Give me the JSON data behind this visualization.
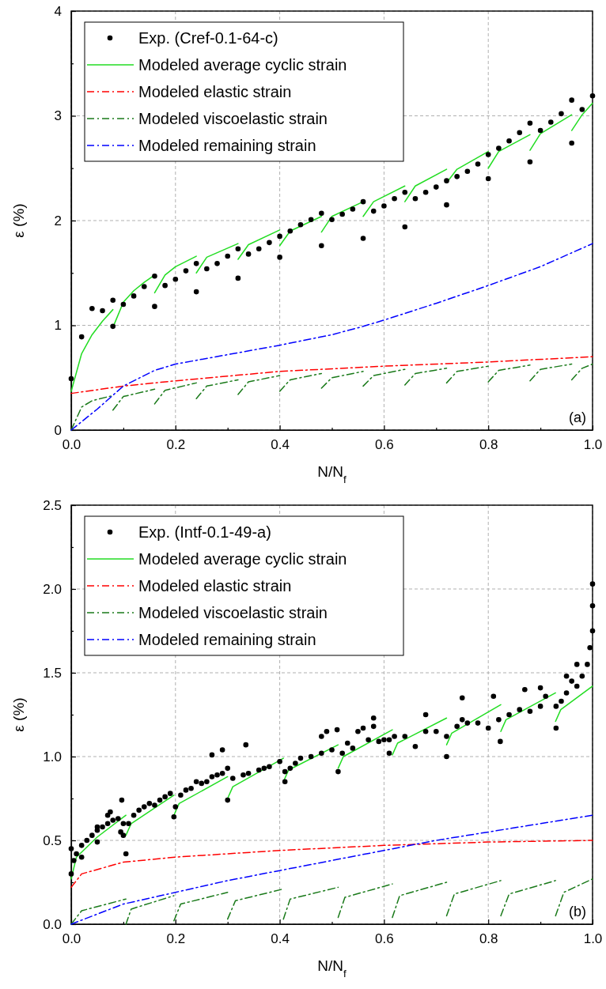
{
  "chart_data": [
    {
      "type": "line",
      "xlabel": "N/N$_{f}$",
      "ylabel": "ε (%)",
      "xlim": [
        0,
        1
      ],
      "ylim": [
        0,
        4
      ],
      "xticks": [
        {
          "value": 0,
          "label": "0.0"
        },
        {
          "value": 0.1,
          "label": null
        },
        {
          "value": 0.2,
          "label": "0.2"
        },
        {
          "value": 0.3,
          "label": null
        },
        {
          "value": 0.4,
          "label": "0.4"
        },
        {
          "value": 0.5,
          "label": null
        },
        {
          "value": 0.6,
          "label": "0.6"
        },
        {
          "value": 0.7,
          "label": null
        },
        {
          "value": 0.8,
          "label": "0.8"
        },
        {
          "value": 0.9,
          "label": null
        },
        {
          "value": 1,
          "label": "1.0"
        }
      ],
      "yticks": [
        0,
        {
          "value": 0.5,
          "label": null
        },
        1,
        {
          "value": 1.5,
          "label": null
        },
        2,
        {
          "value": 2.5,
          "label": null
        },
        3,
        {
          "value": 3.5,
          "label": null
        },
        4
      ],
      "grid": true,
      "legend": "top left",
      "annotations": [
        "(a)"
      ],
      "series": [
        {
          "name": "Exp. (Cref-0.1-64-c)",
          "type": "scatter",
          "marker": "circle",
          "color": "#000000",
          "x": [
            0,
            0.02,
            0.04,
            0.06,
            0.08,
            0.08,
            0.1,
            0.12,
            0.14,
            0.16,
            0.16,
            0.18,
            0.2,
            0.22,
            0.24,
            0.24,
            0.26,
            0.28,
            0.3,
            0.32,
            0.32,
            0.34,
            0.36,
            0.38,
            0.4,
            0.4,
            0.42,
            0.44,
            0.46,
            0.48,
            0.48,
            0.5,
            0.52,
            0.54,
            0.56,
            0.56,
            0.58,
            0.6,
            0.62,
            0.64,
            0.64,
            0.66,
            0.68,
            0.7,
            0.72,
            0.72,
            0.74,
            0.76,
            0.78,
            0.8,
            0.8,
            0.82,
            0.84,
            0.86,
            0.88,
            0.88,
            0.9,
            0.92,
            0.94,
            0.96,
            0.96,
            0.98,
            1.0
          ],
          "values": [
            0.49,
            0.89,
            1.16,
            1.14,
            1.24,
            0.99,
            1.2,
            1.28,
            1.37,
            1.47,
            1.18,
            1.38,
            1.44,
            1.52,
            1.59,
            1.32,
            1.54,
            1.59,
            1.66,
            1.73,
            1.45,
            1.68,
            1.73,
            1.79,
            1.85,
            1.65,
            1.9,
            1.96,
            2.01,
            2.07,
            1.76,
            2.01,
            2.06,
            2.11,
            2.18,
            1.83,
            2.09,
            2.14,
            2.21,
            2.27,
            1.94,
            2.21,
            2.27,
            2.32,
            2.38,
            2.15,
            2.42,
            2.47,
            2.54,
            2.63,
            2.4,
            2.69,
            2.76,
            2.84,
            2.93,
            2.56,
            2.86,
            2.94,
            3.02,
            3.15,
            2.74,
            3.06,
            3.19
          ]
        },
        {
          "name": "Modeled average cyclic strain",
          "line_style": "solid",
          "color": "#22dd22",
          "x": [
            0,
            0.02,
            0.04,
            0.06,
            0.08
          ],
          "values": [
            0.37,
            0.73,
            0.91,
            1.04,
            1.15
          ]
        },
        {
          "line_style": "solid",
          "color": "#22dd22",
          "x": [
            0.08,
            0.1,
            0.12,
            0.14,
            0.16
          ],
          "values": [
            0.98,
            1.22,
            1.33,
            1.41,
            1.48
          ]
        },
        {
          "line_style": "solid",
          "color": "#22dd22",
          "x": [
            0.16,
            0.18,
            0.2,
            0.24
          ],
          "values": [
            1.31,
            1.48,
            1.56,
            1.66
          ]
        },
        {
          "line_style": "solid",
          "color": "#22dd22",
          "x": [
            0.24,
            0.26,
            0.32
          ],
          "values": [
            1.5,
            1.65,
            1.78
          ]
        },
        {
          "line_style": "solid",
          "color": "#22dd22",
          "x": [
            0.32,
            0.34,
            0.4
          ],
          "values": [
            1.63,
            1.77,
            1.91
          ]
        },
        {
          "line_style": "solid",
          "color": "#22dd22",
          "x": [
            0.4,
            0.42,
            0.48
          ],
          "values": [
            1.76,
            1.9,
            2.04
          ]
        },
        {
          "line_style": "solid",
          "color": "#22dd22",
          "x": [
            0.48,
            0.5,
            0.56
          ],
          "values": [
            1.89,
            2.04,
            2.18
          ]
        },
        {
          "line_style": "solid",
          "color": "#22dd22",
          "x": [
            0.56,
            0.58,
            0.64
          ],
          "values": [
            2.04,
            2.18,
            2.33
          ]
        },
        {
          "line_style": "solid",
          "color": "#22dd22",
          "x": [
            0.64,
            0.66,
            0.72
          ],
          "values": [
            2.18,
            2.33,
            2.49
          ]
        },
        {
          "line_style": "solid",
          "color": "#22dd22",
          "x": [
            0.72,
            0.74,
            0.8
          ],
          "values": [
            2.36,
            2.49,
            2.66
          ]
        },
        {
          "line_style": "solid",
          "color": "#22dd22",
          "x": [
            0.8,
            0.82,
            0.88
          ],
          "values": [
            2.5,
            2.66,
            2.82
          ]
        },
        {
          "line_style": "solid",
          "color": "#22dd22",
          "x": [
            0.88,
            0.9,
            0.96
          ],
          "values": [
            2.67,
            2.83,
            3.01
          ]
        },
        {
          "line_style": "solid",
          "color": "#22dd22",
          "x": [
            0.96,
            0.98,
            1.0
          ],
          "values": [
            2.86,
            3.01,
            3.12
          ]
        },
        {
          "name": "Modeled elastic strain",
          "line_style": "dashdot",
          "color": "#ff0000",
          "x": [
            0,
            0.1,
            0.2,
            0.4,
            0.6,
            0.8,
            1.0
          ],
          "values": [
            0.35,
            0.42,
            0.47,
            0.56,
            0.61,
            0.65,
            0.7
          ]
        },
        {
          "name": "Modeled viscoelastic strain",
          "line_style": "dashdot",
          "color": "#1a7a1a",
          "x": [
            0,
            0.02,
            0.04,
            0.08
          ],
          "values": [
            0,
            0.22,
            0.28,
            0.33
          ]
        },
        {
          "line_style": "dashdot",
          "color": "#1a7a1a",
          "x": [
            0.08,
            0.1,
            0.16
          ],
          "values": [
            0.19,
            0.32,
            0.39
          ]
        },
        {
          "line_style": "dashdot",
          "color": "#1a7a1a",
          "x": [
            0.16,
            0.18,
            0.24
          ],
          "values": [
            0.25,
            0.38,
            0.45
          ]
        },
        {
          "line_style": "dashdot",
          "color": "#1a7a1a",
          "x": [
            0.24,
            0.26,
            0.32
          ],
          "values": [
            0.3,
            0.42,
            0.48
          ]
        },
        {
          "line_style": "dashdot",
          "color": "#1a7a1a",
          "x": [
            0.32,
            0.34,
            0.4
          ],
          "values": [
            0.34,
            0.46,
            0.52
          ]
        },
        {
          "line_style": "dashdot",
          "color": "#1a7a1a",
          "x": [
            0.4,
            0.42,
            0.48
          ],
          "values": [
            0.37,
            0.48,
            0.54
          ]
        },
        {
          "line_style": "dashdot",
          "color": "#1a7a1a",
          "x": [
            0.48,
            0.5,
            0.56
          ],
          "values": [
            0.4,
            0.5,
            0.56
          ]
        },
        {
          "line_style": "dashdot",
          "color": "#1a7a1a",
          "x": [
            0.56,
            0.58,
            0.64
          ],
          "values": [
            0.42,
            0.52,
            0.58
          ]
        },
        {
          "line_style": "dashdot",
          "color": "#1a7a1a",
          "x": [
            0.64,
            0.66,
            0.72
          ],
          "values": [
            0.43,
            0.54,
            0.59
          ]
        },
        {
          "line_style": "dashdot",
          "color": "#1a7a1a",
          "x": [
            0.72,
            0.74,
            0.8
          ],
          "values": [
            0.45,
            0.56,
            0.61
          ]
        },
        {
          "line_style": "dashdot",
          "color": "#1a7a1a",
          "x": [
            0.8,
            0.82,
            0.88
          ],
          "values": [
            0.46,
            0.57,
            0.62
          ]
        },
        {
          "line_style": "dashdot",
          "color": "#1a7a1a",
          "x": [
            0.88,
            0.9,
            0.96
          ],
          "values": [
            0.47,
            0.58,
            0.63
          ]
        },
        {
          "line_style": "dashdot",
          "color": "#1a7a1a",
          "x": [
            0.96,
            0.98,
            1.0
          ],
          "values": [
            0.48,
            0.59,
            0.63
          ]
        },
        {
          "name": "Modeled remaining strain",
          "line_style": "dashdot",
          "color": "#0000ff",
          "x": [
            0,
            0.05,
            0.1,
            0.16,
            0.2,
            0.3,
            0.4,
            0.5,
            0.56,
            0.6,
            0.7,
            0.8,
            0.9,
            1.0
          ],
          "values": [
            0,
            0.2,
            0.42,
            0.57,
            0.63,
            0.72,
            0.81,
            0.91,
            0.99,
            1.05,
            1.21,
            1.38,
            1.56,
            1.78
          ]
        }
      ]
    },
    {
      "type": "line",
      "xlabel": "N/N$_{f}$",
      "ylabel": "ε (%)",
      "xlim": [
        0,
        1
      ],
      "ylim": [
        0,
        2.5
      ],
      "xticks": [
        {
          "value": 0,
          "label": "0.0"
        },
        {
          "value": 0.1,
          "label": null
        },
        {
          "value": 0.2,
          "label": "0.2"
        },
        {
          "value": 0.3,
          "label": null
        },
        {
          "value": 0.4,
          "label": "0.4"
        },
        {
          "value": 0.5,
          "label": null
        },
        {
          "value": 0.6,
          "label": "0.6"
        },
        {
          "value": 0.7,
          "label": null
        },
        {
          "value": 0.8,
          "label": "0.8"
        },
        {
          "value": 0.9,
          "label": null
        },
        {
          "value": 1,
          "label": "1.0"
        }
      ],
      "yticks": [
        {
          "value": 0,
          "label": "0.0"
        },
        {
          "value": 0.25,
          "label": null
        },
        {
          "value": 0.5,
          "label": "0.5"
        },
        {
          "value": 0.75,
          "label": null
        },
        {
          "value": 1,
          "label": "1.0"
        },
        {
          "value": 1.25,
          "label": null
        },
        {
          "value": 1.5,
          "label": "1.5"
        },
        {
          "value": 1.75,
          "label": null
        },
        {
          "value": 2,
          "label": "2.0"
        },
        {
          "value": 2.25,
          "label": null
        },
        {
          "value": 2.5,
          "label": "2.5"
        }
      ],
      "grid": true,
      "legend": "top left",
      "annotations": [
        "(b)"
      ],
      "series": [
        {
          "name": "Exp. (Intf-0.1-49-a)",
          "type": "scatter",
          "marker": "circle",
          "color": "#000000",
          "x": [
            0,
            0,
            0.005,
            0.01,
            0.02,
            0.02,
            0.03,
            0.04,
            0.05,
            0.05,
            0.05,
            0.06,
            0.07,
            0.07,
            0.075,
            0.08,
            0.09,
            0.095,
            0.097,
            0.1,
            0.1,
            0.105,
            0.11,
            0.12,
            0.13,
            0.14,
            0.15,
            0.16,
            0.17,
            0.18,
            0.19,
            0.197,
            0.2,
            0.21,
            0.22,
            0.23,
            0.24,
            0.25,
            0.26,
            0.27,
            0.27,
            0.28,
            0.29,
            0.29,
            0.3,
            0.3,
            0.31,
            0.33,
            0.335,
            0.34,
            0.36,
            0.37,
            0.38,
            0.4,
            0.41,
            0.41,
            0.42,
            0.43,
            0.44,
            0.46,
            0.48,
            0.48,
            0.49,
            0.5,
            0.51,
            0.512,
            0.52,
            0.53,
            0.54,
            0.55,
            0.56,
            0.57,
            0.58,
            0.58,
            0.59,
            0.6,
            0.61,
            0.61,
            0.62,
            0.64,
            0.66,
            0.68,
            0.68,
            0.7,
            0.72,
            0.72,
            0.74,
            0.75,
            0.75,
            0.76,
            0.78,
            0.8,
            0.81,
            0.82,
            0.823,
            0.84,
            0.86,
            0.87,
            0.88,
            0.9,
            0.9,
            0.91,
            0.93,
            0.93,
            0.94,
            0.95,
            0.95,
            0.96,
            0.97,
            0.97,
            0.98,
            0.99,
            0.995,
            1.0,
            1.0,
            1.0
          ],
          "values": [
            0.3,
            0.45,
            0.38,
            0.42,
            0.47,
            0.4,
            0.5,
            0.53,
            0.56,
            0.49,
            0.58,
            0.58,
            0.6,
            0.65,
            0.67,
            0.62,
            0.63,
            0.55,
            0.74,
            0.6,
            0.53,
            0.42,
            0.6,
            0.65,
            0.68,
            0.7,
            0.72,
            0.71,
            0.74,
            0.76,
            0.78,
            0.64,
            0.7,
            0.77,
            0.8,
            0.81,
            0.85,
            0.84,
            0.85,
            0.88,
            1.01,
            0.89,
            0.9,
            1.04,
            0.74,
            0.93,
            0.87,
            0.89,
            1.07,
            0.9,
            0.92,
            0.93,
            0.94,
            0.97,
            0.85,
            0.91,
            0.93,
            0.96,
            0.99,
            1.0,
            1.02,
            1.12,
            1.15,
            1.04,
            1.16,
            0.91,
            1.02,
            1.08,
            1.05,
            1.15,
            1.17,
            1.1,
            1.18,
            1.23,
            1.09,
            1.1,
            1.02,
            1.1,
            1.12,
            1.12,
            1.06,
            1.15,
            1.25,
            1.15,
            1.0,
            1.12,
            1.18,
            1.22,
            1.35,
            1.2,
            1.2,
            1.17,
            1.36,
            1.22,
            1.09,
            1.25,
            1.28,
            1.4,
            1.27,
            1.3,
            1.41,
            1.36,
            1.17,
            1.3,
            1.33,
            1.38,
            1.48,
            1.45,
            1.42,
            1.55,
            1.48,
            1.55,
            1.65,
            1.75,
            1.9,
            2.03
          ]
        },
        {
          "name": "Modeled average cyclic strain",
          "line_style": "solid",
          "color": "#22dd22",
          "x": [
            0,
            0.01,
            0.05,
            0.105
          ],
          "values": [
            0.27,
            0.4,
            0.52,
            0.65
          ]
        },
        {
          "line_style": "solid",
          "color": "#22dd22",
          "x": [
            0.105,
            0.115,
            0.197
          ],
          "values": [
            0.53,
            0.6,
            0.77
          ]
        },
        {
          "line_style": "solid",
          "color": "#22dd22",
          "x": [
            0.197,
            0.207,
            0.3
          ],
          "values": [
            0.65,
            0.72,
            0.88
          ]
        },
        {
          "line_style": "solid",
          "color": "#22dd22",
          "x": [
            0.3,
            0.31,
            0.407
          ],
          "values": [
            0.75,
            0.82,
            0.99
          ]
        },
        {
          "line_style": "solid",
          "color": "#22dd22",
          "x": [
            0.407,
            0.417,
            0.512
          ],
          "values": [
            0.85,
            0.92,
            1.07
          ]
        },
        {
          "line_style": "solid",
          "color": "#22dd22",
          "x": [
            0.512,
            0.522,
            0.616
          ],
          "values": [
            0.93,
            1.0,
            1.16
          ]
        },
        {
          "line_style": "solid",
          "color": "#22dd22",
          "x": [
            0.616,
            0.626,
            0.72
          ],
          "values": [
            1.01,
            1.08,
            1.23
          ]
        },
        {
          "line_style": "solid",
          "color": "#22dd22",
          "x": [
            0.72,
            0.73,
            0.824
          ],
          "values": [
            1.07,
            1.14,
            1.31
          ]
        },
        {
          "line_style": "solid",
          "color": "#22dd22",
          "x": [
            0.824,
            0.834,
            0.929
          ],
          "values": [
            1.15,
            1.22,
            1.38
          ]
        },
        {
          "line_style": "solid",
          "color": "#22dd22",
          "x": [
            0.929,
            0.939,
            1.0
          ],
          "values": [
            1.21,
            1.28,
            1.42
          ]
        },
        {
          "name": "Modeled elastic strain",
          "line_style": "dashdot",
          "color": "#ff0000",
          "x": [
            0,
            0.02,
            0.1,
            0.2,
            0.4,
            0.6,
            0.8,
            1.0
          ],
          "values": [
            0.22,
            0.3,
            0.37,
            0.4,
            0.44,
            0.47,
            0.49,
            0.5
          ]
        },
        {
          "name": "Modeled viscoelastic strain",
          "line_style": "dashdot",
          "color": "#1a7a1a",
          "x": [
            0,
            0.02,
            0.105
          ],
          "values": [
            0,
            0.08,
            0.15
          ]
        },
        {
          "line_style": "dashdot",
          "color": "#1a7a1a",
          "x": [
            0.105,
            0.115,
            0.197
          ],
          "values": [
            0,
            0.09,
            0.17
          ]
        },
        {
          "line_style": "dashdot",
          "color": "#1a7a1a",
          "x": [
            0.197,
            0.21,
            0.3
          ],
          "values": [
            0.02,
            0.12,
            0.19
          ]
        },
        {
          "line_style": "dashdot",
          "color": "#1a7a1a",
          "x": [
            0.3,
            0.315,
            0.407
          ],
          "values": [
            0.03,
            0.14,
            0.21
          ]
        },
        {
          "line_style": "dashdot",
          "color": "#1a7a1a",
          "x": [
            0.407,
            0.42,
            0.512
          ],
          "values": [
            0.03,
            0.15,
            0.22
          ]
        },
        {
          "line_style": "dashdot",
          "color": "#1a7a1a",
          "x": [
            0.512,
            0.525,
            0.616
          ],
          "values": [
            0.04,
            0.16,
            0.24
          ]
        },
        {
          "line_style": "dashdot",
          "color": "#1a7a1a",
          "x": [
            0.616,
            0.63,
            0.72
          ],
          "values": [
            0.04,
            0.17,
            0.25
          ]
        },
        {
          "line_style": "dashdot",
          "color": "#1a7a1a",
          "x": [
            0.72,
            0.735,
            0.824
          ],
          "values": [
            0.05,
            0.18,
            0.26
          ]
        },
        {
          "line_style": "dashdot",
          "color": "#1a7a1a",
          "x": [
            0.824,
            0.84,
            0.929
          ],
          "values": [
            0.05,
            0.18,
            0.26
          ]
        },
        {
          "line_style": "dashdot",
          "color": "#1a7a1a",
          "x": [
            0.929,
            0.945,
            1.0
          ],
          "values": [
            0.05,
            0.19,
            0.27
          ]
        },
        {
          "name": "Modeled remaining strain",
          "line_style": "dashdot",
          "color": "#0000ff",
          "x": [
            0,
            0.1,
            0.2,
            0.3,
            0.4,
            0.5,
            0.6,
            0.7,
            0.8,
            0.9,
            1.0
          ],
          "values": [
            0,
            0.12,
            0.19,
            0.26,
            0.32,
            0.38,
            0.44,
            0.5,
            0.55,
            0.6,
            0.65
          ]
        }
      ]
    }
  ]
}
